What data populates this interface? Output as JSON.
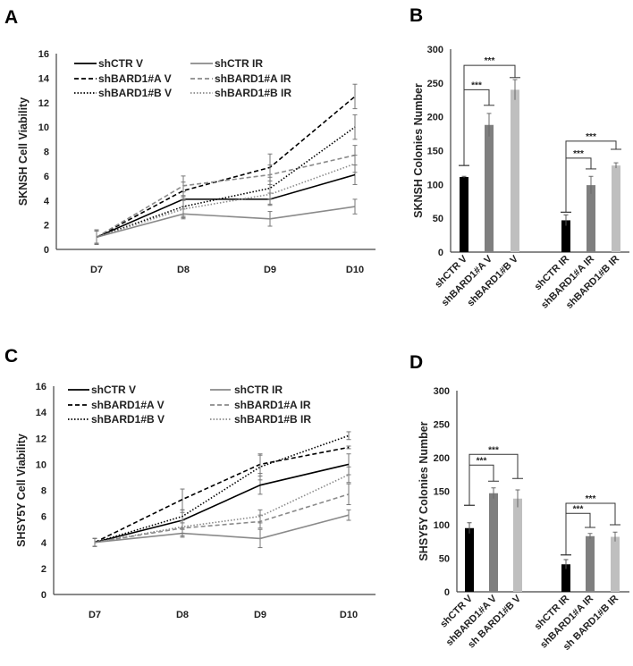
{
  "panel_labels": [
    "A",
    "B",
    "C",
    "D"
  ],
  "colors": {
    "v_line": "#000000",
    "ir_line": "#8a8a8a",
    "bar_ctr": "#000000",
    "bar_a": "#7f7f7f",
    "bar_b": "#bfbfbf",
    "axis": "#444444"
  },
  "chart_data": [
    {
      "panel": "A",
      "type": "line",
      "ylabel": "SKNSH Cell Viability",
      "ylim": [
        0,
        16
      ],
      "yticks": [
        "0",
        "2",
        "4",
        "6",
        "8",
        "10",
        "12",
        "14",
        "16"
      ],
      "categories": [
        "D7",
        "D8",
        "D9",
        "D10"
      ],
      "legend_placement": "top-left",
      "series": [
        {
          "name": "shCTR   V",
          "style": "solid",
          "group": "V",
          "values": [
            1,
            4.1,
            4.1,
            6.1
          ],
          "errors": [
            0.6,
            0.6,
            0.5,
            0.8
          ]
        },
        {
          "name": "shCTR IR",
          "style": "solid",
          "group": "IR",
          "values": [
            1,
            2.9,
            2.5,
            3.5
          ],
          "errors": [
            0.6,
            0.4,
            0.6,
            0.6
          ]
        },
        {
          "name": "shBARD1#A V",
          "style": "dashed",
          "group": "V",
          "values": [
            1,
            4.8,
            6.7,
            12.5
          ],
          "errors": [
            0.5,
            0.7,
            1.1,
            1.0
          ]
        },
        {
          "name": "shBARD1#A IR",
          "style": "dashed",
          "group": "IR",
          "values": [
            1,
            5.2,
            6.1,
            7.7
          ],
          "errors": [
            0.5,
            0.8,
            0.8,
            0.8
          ]
        },
        {
          "name": "shBARD1#B V",
          "style": "dotted",
          "group": "V",
          "values": [
            1,
            3.5,
            5.0,
            10.0
          ],
          "errors": [
            0.5,
            0.8,
            0.9,
            1.0
          ]
        },
        {
          "name": "shBARD1#B IR",
          "style": "dotted",
          "group": "IR",
          "values": [
            1,
            3.3,
            4.5,
            7.0
          ],
          "errors": [
            0.5,
            0.7,
            0.8,
            0.7
          ]
        }
      ]
    },
    {
      "panel": "B",
      "type": "bar",
      "ylabel": "SKNSH Colonies Number",
      "ylim": [
        0,
        300
      ],
      "yticks": [
        "0",
        "50",
        "100",
        "150",
        "200",
        "250",
        "300"
      ],
      "categories": [
        "shCTR V",
        "shBARD1#A V",
        "shBARD1#B V",
        "shCTR IR",
        "shBARD1#A IR",
        "shBARD1#B IR"
      ],
      "values": [
        111,
        188,
        240,
        47,
        99,
        128
      ],
      "errors": [
        1,
        17,
        15,
        8,
        13,
        4
      ],
      "significance": [
        {
          "from": 0,
          "to": 1,
          "label": "***",
          "start": 128,
          "top": 240,
          "end": 217
        },
        {
          "from": 0,
          "to": 2,
          "label": "***",
          "start": 128,
          "top": 276,
          "end": 258
        },
        {
          "from": 3,
          "to": 4,
          "label": "***",
          "start": 59,
          "top": 139,
          "end": 123
        },
        {
          "from": 3,
          "to": 5,
          "label": "***",
          "start": 59,
          "top": 164,
          "end": 152
        }
      ]
    },
    {
      "panel": "C",
      "type": "line",
      "ylabel": "SHSY5Y Cell Viability",
      "ylim": [
        0,
        16
      ],
      "yticks": [
        "0",
        "2",
        "4",
        "6",
        "8",
        "10",
        "12",
        "14",
        "16"
      ],
      "categories": [
        "D7",
        "D8",
        "D9",
        "D10"
      ],
      "legend_placement": "top-left",
      "series": [
        {
          "name": "shCTR  V",
          "style": "solid",
          "group": "V",
          "values": [
            4,
            5.7,
            8.4,
            10.0
          ],
          "errors": [
            0.3,
            0.6,
            0.7,
            0.8
          ]
        },
        {
          "name": "shCTR IR",
          "style": "solid",
          "group": "IR",
          "values": [
            4,
            4.7,
            4.3,
            6.1
          ],
          "errors": [
            0.3,
            0.3,
            0.7,
            0.4
          ]
        },
        {
          "name": "shBARD1#A  V",
          "style": "dashed",
          "group": "V",
          "values": [
            4,
            7.3,
            10.0,
            11.3
          ],
          "errors": [
            0.3,
            0.8,
            0.7,
            0.1
          ]
        },
        {
          "name": "shBARD1#A IR",
          "style": "dashed",
          "group": "IR",
          "values": [
            4,
            5.1,
            5.6,
            7.7
          ],
          "errors": [
            0.3,
            0.6,
            0.5,
            0.8
          ]
        },
        {
          "name": "shBARD1#B  V",
          "style": "dotted",
          "group": "V",
          "values": [
            4,
            6.0,
            9.8,
            12.2
          ],
          "errors": [
            0.3,
            0.5,
            1.0,
            0.3
          ]
        },
        {
          "name": "shBARD1#B IR",
          "style": "dotted",
          "group": "IR",
          "values": [
            4,
            5.2,
            6.0,
            9.2
          ],
          "errors": [
            0.3,
            0.5,
            0.5,
            0.6
          ]
        }
      ]
    },
    {
      "panel": "D",
      "type": "bar",
      "ylabel": "SHSY5Y Colonies Number",
      "ylim": [
        0,
        300
      ],
      "yticks": [
        "0",
        "50",
        "100",
        "150",
        "200",
        "250",
        "300"
      ],
      "categories": [
        "shCTR V",
        "shBARD1#A V",
        "sh BARD1#B V",
        "shCTR IR",
        "shBARD1#A IR",
        "sh BARD1#B IR"
      ],
      "values": [
        95,
        147,
        139,
        41,
        83,
        82
      ],
      "errors": [
        8,
        8,
        13,
        7,
        4,
        7
      ],
      "significance": [
        {
          "from": 0,
          "to": 1,
          "label": "***",
          "start": 129,
          "top": 189,
          "end": 165
        },
        {
          "from": 0,
          "to": 2,
          "label": "***",
          "start": 129,
          "top": 205,
          "end": 169
        },
        {
          "from": 3,
          "to": 4,
          "label": "***",
          "start": 55,
          "top": 117,
          "end": 96
        },
        {
          "from": 3,
          "to": 5,
          "label": "***",
          "start": 55,
          "top": 132,
          "end": 100
        }
      ]
    }
  ]
}
